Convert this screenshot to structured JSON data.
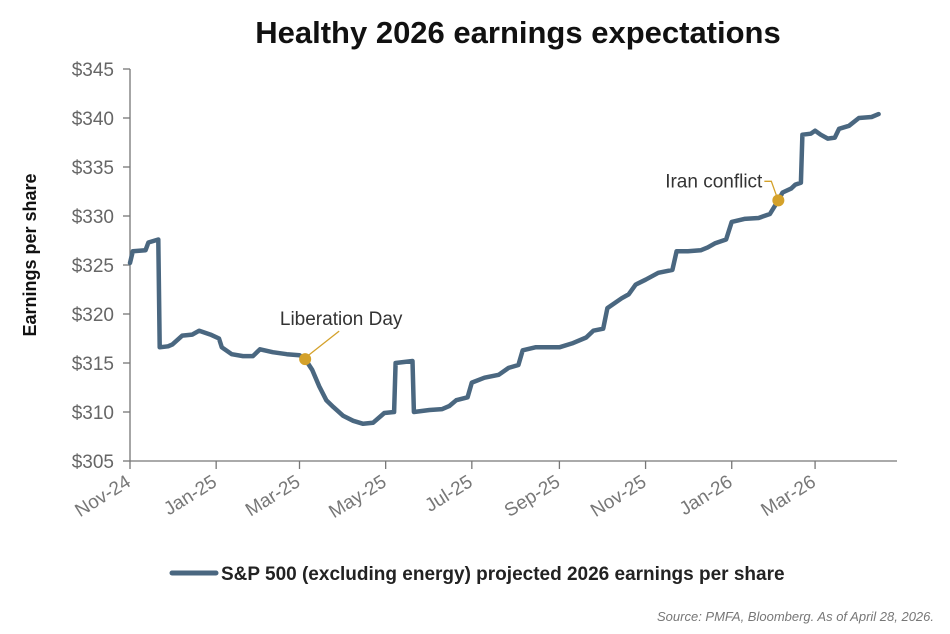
{
  "chart_data": {
    "type": "line",
    "title": "Healthy 2026 earnings expectations",
    "ylabel": "Earnings per share",
    "xlabel": "",
    "ylim": [
      305,
      345
    ],
    "y_ticks": [
      "$305",
      "$310",
      "$315",
      "$320",
      "$325",
      "$330",
      "$335",
      "$340",
      "$345"
    ],
    "x_ticks": [
      "Nov-24",
      "Jan-25",
      "Mar-25",
      "May-25",
      "Jul-25",
      "Sep-25",
      "Nov-25",
      "Jan-26",
      "Mar-26"
    ],
    "x_tick_dates": [
      "2024-11-01",
      "2025-01-01",
      "2025-03-01",
      "2025-05-01",
      "2025-07-01",
      "2025-09-01",
      "2025-11-01",
      "2026-01-01",
      "2026-03-01"
    ],
    "xlim": [
      "2024-11-01",
      "2026-04-28"
    ],
    "grid": false,
    "legend_position": "bottom",
    "line_color": "#4a6780",
    "annotation_color": "#d4a12a",
    "series": [
      {
        "name": "S&P 500 (excluding energy) projected 2026 earnings per share",
        "points": [
          [
            "2024-11-01",
            325.2
          ],
          [
            "2024-11-03",
            326.4
          ],
          [
            "2024-11-12",
            326.5
          ],
          [
            "2024-11-14",
            327.3
          ],
          [
            "2024-11-21",
            327.6
          ],
          [
            "2024-11-22",
            316.6
          ],
          [
            "2024-11-28",
            316.7
          ],
          [
            "2024-12-01",
            316.9
          ],
          [
            "2024-12-08",
            317.8
          ],
          [
            "2024-12-15",
            317.9
          ],
          [
            "2024-12-20",
            318.3
          ],
          [
            "2024-12-28",
            317.9
          ],
          [
            "2025-01-03",
            317.5
          ],
          [
            "2025-01-05",
            316.6
          ],
          [
            "2025-01-12",
            315.9
          ],
          [
            "2025-01-20",
            315.7
          ],
          [
            "2025-01-27",
            315.7
          ],
          [
            "2025-02-01",
            316.4
          ],
          [
            "2025-02-10",
            316.1
          ],
          [
            "2025-02-20",
            315.9
          ],
          [
            "2025-03-01",
            315.8
          ],
          [
            "2025-03-05",
            315.4
          ],
          [
            "2025-03-10",
            314.3
          ],
          [
            "2025-03-15",
            312.6
          ],
          [
            "2025-03-20",
            311.2
          ],
          [
            "2025-03-25",
            310.5
          ],
          [
            "2025-04-01",
            309.6
          ],
          [
            "2025-04-08",
            309.1
          ],
          [
            "2025-04-15",
            308.8
          ],
          [
            "2025-04-22",
            308.9
          ],
          [
            "2025-04-30",
            309.9
          ],
          [
            "2025-05-07",
            310.0
          ],
          [
            "2025-05-08",
            315.0
          ],
          [
            "2025-05-20",
            315.2
          ],
          [
            "2025-05-21",
            310.0
          ],
          [
            "2025-06-01",
            310.2
          ],
          [
            "2025-06-10",
            310.3
          ],
          [
            "2025-06-15",
            310.6
          ],
          [
            "2025-06-20",
            311.2
          ],
          [
            "2025-06-28",
            311.5
          ],
          [
            "2025-07-01",
            313.0
          ],
          [
            "2025-07-10",
            313.5
          ],
          [
            "2025-07-20",
            313.8
          ],
          [
            "2025-07-27",
            314.5
          ],
          [
            "2025-08-03",
            314.8
          ],
          [
            "2025-08-06",
            316.3
          ],
          [
            "2025-08-15",
            316.6
          ],
          [
            "2025-08-25",
            316.6
          ],
          [
            "2025-09-01",
            316.6
          ],
          [
            "2025-09-10",
            317.0
          ],
          [
            "2025-09-20",
            317.6
          ],
          [
            "2025-09-25",
            318.3
          ],
          [
            "2025-10-02",
            318.5
          ],
          [
            "2025-10-05",
            320.6
          ],
          [
            "2025-10-15",
            321.6
          ],
          [
            "2025-10-20",
            322.0
          ],
          [
            "2025-10-25",
            323.0
          ],
          [
            "2025-11-01",
            323.5
          ],
          [
            "2025-11-10",
            324.2
          ],
          [
            "2025-11-20",
            324.5
          ],
          [
            "2025-11-23",
            326.4
          ],
          [
            "2025-12-01",
            326.4
          ],
          [
            "2025-12-10",
            326.5
          ],
          [
            "2025-12-15",
            326.8
          ],
          [
            "2025-12-20",
            327.2
          ],
          [
            "2025-12-28",
            327.6
          ],
          [
            "2026-01-01",
            329.4
          ],
          [
            "2026-01-10",
            329.7
          ],
          [
            "2026-01-20",
            329.8
          ],
          [
            "2026-01-28",
            330.2
          ],
          [
            "2026-02-03",
            331.6
          ],
          [
            "2026-02-06",
            332.4
          ],
          [
            "2026-02-12",
            332.8
          ],
          [
            "2026-02-15",
            333.2
          ],
          [
            "2026-02-19",
            333.4
          ],
          [
            "2026-02-20",
            338.3
          ],
          [
            "2026-02-26",
            338.4
          ],
          [
            "2026-03-01",
            338.7
          ],
          [
            "2026-03-05",
            338.3
          ],
          [
            "2026-03-10",
            337.9
          ],
          [
            "2026-03-15",
            338.0
          ],
          [
            "2026-03-18",
            338.9
          ],
          [
            "2026-03-25",
            339.2
          ],
          [
            "2026-04-01",
            340.0
          ],
          [
            "2026-04-10",
            340.1
          ],
          [
            "2026-04-15",
            340.4
          ]
        ]
      }
    ],
    "annotations": [
      {
        "label": "Liberation Day",
        "date": "2025-03-05",
        "value": 315.4
      },
      {
        "label": "Iran conflict",
        "date": "2026-02-03",
        "value": 331.6
      }
    ]
  },
  "source": "Source: PMFA, Bloomberg. As of April 28, 2026."
}
